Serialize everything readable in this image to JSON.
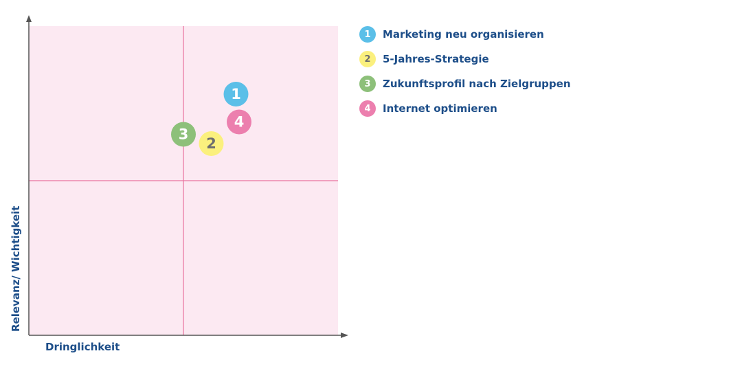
{
  "chart_data": {
    "type": "scatter",
    "title": "",
    "xlabel": "Dringlichkeit",
    "ylabel": "Relevanz/ Wichtigkeit",
    "xlim": [
      0,
      1
    ],
    "ylim": [
      0,
      1
    ],
    "grid": false,
    "quadrant_dividers": {
      "x": 0.5,
      "y": 0.5
    },
    "legend_position": "right",
    "points": [
      {
        "label": "1",
        "name": "Marketing neu organisieren",
        "x": 0.67,
        "y": 0.78,
        "color": "#5bbfe8",
        "text_color": "#ffffff"
      },
      {
        "label": "2",
        "name": "5-Jahres-Strategie",
        "x": 0.59,
        "y": 0.62,
        "color": "#fbf07e",
        "text_color": "#6e6e6e"
      },
      {
        "label": "3",
        "name": "Zukunftsprofil nach Zielgruppen",
        "x": 0.5,
        "y": 0.65,
        "color": "#8dc07a",
        "text_color": "#ffffff"
      },
      {
        "label": "4",
        "name": "Internet optimieren",
        "x": 0.68,
        "y": 0.69,
        "color": "#ec7fae",
        "text_color": "#ffffff"
      }
    ]
  },
  "colors": {
    "plot_background": "#fce9f2",
    "quadrant_lines": "#e8739f",
    "axes": "#555555",
    "label_text": "#1d4e89"
  }
}
